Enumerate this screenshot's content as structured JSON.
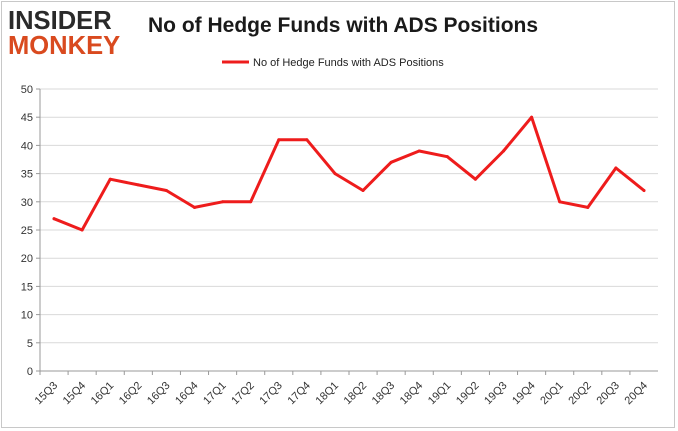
{
  "logo": {
    "line1": "INSIDER",
    "line2": "MONKEY"
  },
  "colors": {
    "series": "#ee1c1c",
    "grid": "#d9d9d9",
    "logo_dark": "#2a2a2a",
    "logo_accent": "#d94a1f"
  },
  "chart_data": {
    "type": "line",
    "title": "No of Hedge Funds with ADS Positions",
    "xlabel": "",
    "ylabel": "",
    "ylim": [
      0,
      50
    ],
    "yticks": [
      0,
      5,
      10,
      15,
      20,
      25,
      30,
      35,
      40,
      45,
      50
    ],
    "grid": "horizontal",
    "legend_position": "top-center",
    "categories": [
      "15Q3",
      "15Q4",
      "16Q1",
      "16Q2",
      "16Q3",
      "16Q4",
      "17Q1",
      "17Q2",
      "17Q3",
      "17Q4",
      "18Q1",
      "18Q2",
      "18Q3",
      "18Q4",
      "19Q1",
      "19Q2",
      "19Q3",
      "19Q4",
      "20Q1",
      "20Q2",
      "20Q3",
      "20Q4"
    ],
    "series": [
      {
        "name": "No of Hedge Funds with ADS Positions",
        "values": [
          27,
          25,
          34,
          33,
          32,
          29,
          30,
          30,
          41,
          41,
          35,
          32,
          37,
          39,
          38,
          34,
          39,
          45,
          30,
          29,
          36,
          32
        ]
      }
    ]
  }
}
